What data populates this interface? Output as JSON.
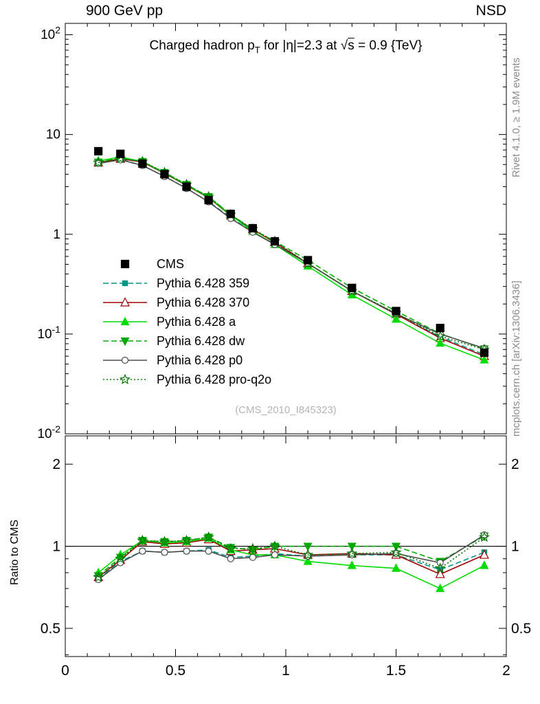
{
  "header": {
    "left": "900 GeV pp",
    "right": "NSD"
  },
  "title": {
    "pre": "Charged hadron p",
    "sub": "T",
    "mid": " for |η|=2.3 at ",
    "sqrt": "√",
    "sqrt_arg": "s",
    "post": " = 0.9 {TeV}"
  },
  "side_notes": {
    "top_right": "Rivet 4.1.0, ≥ 1.9M events",
    "bottom_right": "mcplots.cern.ch [arXiv:1306.3436]"
  },
  "watermark": "(CMS_2010_I845323)",
  "axes": {
    "ratio_ylabel": "Ratio to CMS",
    "x_tick_values": [
      0,
      0.5,
      1,
      1.5,
      2
    ],
    "x_tick_labels": [
      "0",
      "0.5",
      "1",
      "1.5",
      "2"
    ],
    "main_y_decades": [
      2,
      1,
      0,
      -1,
      -2
    ],
    "main_y_tick_labels": [
      "10^2",
      "10",
      "1",
      "10^-1",
      "10^-2"
    ],
    "ratio_y_tick_values": [
      2,
      1,
      0.5
    ],
    "ratio_y_tick_labels": [
      "2",
      "1",
      "0.5"
    ]
  },
  "chart_data": {
    "type": "line",
    "xlim": [
      0,
      2
    ],
    "main_ylim": [
      0.01,
      130
    ],
    "ratio_ylim": [
      0.394,
      2.54
    ],
    "grid": false,
    "legend_position": "middle-left",
    "x": [
      0.15,
      0.25,
      0.35,
      0.45,
      0.55,
      0.65,
      0.75,
      0.85,
      0.95,
      1.1,
      1.3,
      1.5,
      1.7,
      1.9
    ],
    "reference": {
      "id": "cms",
      "name": "CMS",
      "color": "#000000",
      "marker": "square",
      "open": false,
      "msize": 5.5,
      "line": "none",
      "values": [
        6.8,
        6.4,
        5.1,
        4.0,
        3.0,
        2.2,
        1.6,
        1.15,
        0.85,
        0.55,
        0.29,
        0.17,
        0.115,
        0.065
      ]
    },
    "series": [
      {
        "id": "359",
        "name": "Pythia 6.428 359",
        "color": "#009688",
        "line": "dash",
        "marker": "square",
        "open": false,
        "msize": 3.6,
        "values": [
          5.17,
          5.63,
          4.9,
          3.8,
          2.88,
          2.13,
          1.46,
          1.06,
          0.8,
          0.51,
          0.27,
          0.158,
          0.094,
          0.062
        ],
        "ratio": [
          0.76,
          0.88,
          0.96,
          0.95,
          0.96,
          0.97,
          0.91,
          0.92,
          0.94,
          0.92,
          0.93,
          0.93,
          0.82,
          0.95
        ]
      },
      {
        "id": "370",
        "name": "Pythia 6.428 370",
        "color": "#a00000",
        "line": "solid",
        "marker": "tri-up",
        "open": true,
        "msize": 5,
        "values": [
          5.24,
          5.7,
          5.3,
          4.08,
          3.09,
          2.33,
          1.54,
          1.12,
          0.83,
          0.51,
          0.27,
          0.158,
          0.091,
          0.06
        ],
        "ratio": [
          0.77,
          0.89,
          1.04,
          1.02,
          1.03,
          1.06,
          0.96,
          0.97,
          0.98,
          0.93,
          0.94,
          0.93,
          0.79,
          0.93
        ]
      },
      {
        "id": "a",
        "name": "Pythia 6.428 a",
        "color": "#00dc00",
        "line": "solid",
        "marker": "tri-up",
        "open": false,
        "msize": 4.5,
        "values": [
          5.44,
          5.95,
          5.36,
          4.12,
          3.12,
          2.35,
          1.55,
          1.07,
          0.79,
          0.48,
          0.247,
          0.141,
          0.081,
          0.055
        ],
        "ratio": [
          0.8,
          0.93,
          1.05,
          1.03,
          1.04,
          1.07,
          0.97,
          0.93,
          0.93,
          0.88,
          0.85,
          0.83,
          0.7,
          0.85
        ]
      },
      {
        "id": "dw",
        "name": "Pythia 6.428 dw",
        "color": "#00aa00",
        "line": "dash",
        "marker": "tri-down",
        "open": false,
        "msize": 4.5,
        "values": [
          5.3,
          5.82,
          5.36,
          4.16,
          3.15,
          2.38,
          1.58,
          1.12,
          0.85,
          0.55,
          0.29,
          0.17,
          0.101,
          0.071
        ],
        "ratio": [
          0.78,
          0.91,
          1.05,
          1.04,
          1.05,
          1.08,
          0.99,
          0.97,
          1.0,
          1.0,
          1.0,
          1.0,
          0.88,
          1.09
        ]
      },
      {
        "id": "p0",
        "name": "Pythia 6.428 p0",
        "color": "#4d4d4d",
        "line": "solid",
        "marker": "circle",
        "open": true,
        "msize": 4.5,
        "values": [
          5.13,
          5.57,
          4.9,
          3.8,
          2.88,
          2.11,
          1.44,
          1.05,
          0.79,
          0.51,
          0.27,
          0.16,
          0.1,
          0.072
        ],
        "ratio": [
          0.755,
          0.87,
          0.96,
          0.95,
          0.96,
          0.96,
          0.9,
          0.91,
          0.93,
          0.92,
          0.93,
          0.94,
          0.87,
          1.1
        ]
      },
      {
        "id": "pro-q2o",
        "name": "Pythia 6.428 pro-q2o",
        "color": "#007700",
        "line": "dot",
        "marker": "star",
        "open": true,
        "msize": 5,
        "values": [
          5.24,
          5.76,
          5.36,
          4.16,
          3.15,
          2.38,
          1.57,
          1.13,
          0.85,
          0.51,
          0.27,
          0.162,
          0.095,
          0.07
        ],
        "ratio": [
          0.77,
          0.9,
          1.05,
          1.04,
          1.05,
          1.08,
          0.98,
          0.98,
          1.0,
          0.93,
          0.94,
          0.95,
          0.83,
          1.08
        ]
      }
    ]
  }
}
